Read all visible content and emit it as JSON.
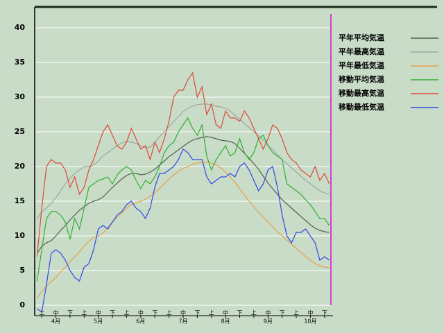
{
  "chart_data": {
    "type": "line",
    "categories": [
      null,
      "上",
      null,
      null,
      "中",
      null,
      null,
      "下",
      null,
      null,
      "上",
      null,
      null,
      "中",
      null,
      null,
      "下",
      null,
      null,
      "上",
      null,
      null,
      "中",
      null,
      null,
      "下",
      null,
      null,
      "上",
      null,
      null,
      "中",
      null,
      null,
      "下",
      null,
      null,
      "上",
      null,
      null,
      "中",
      null,
      null,
      "下",
      null,
      null,
      "上",
      null,
      null,
      "中",
      null,
      null,
      "下",
      null,
      null,
      "上",
      null,
      null,
      "中",
      null,
      null,
      "下",
      null
    ],
    "months": [
      "4月",
      "5月",
      "6月",
      "7月",
      "8月",
      "9月",
      "10月"
    ],
    "ylim": [
      -1.5,
      43
    ],
    "yticks": [
      0,
      5,
      10,
      15,
      20,
      25,
      30,
      35,
      40
    ],
    "grid": true,
    "series": [
      {
        "name": "平年平均気温",
        "color": "#4f634f",
        "values": [
          7.5,
          8.5,
          9,
          9.3,
          10,
          10.8,
          11.5,
          12.3,
          13,
          13.7,
          14.2,
          14.7,
          15,
          15.2,
          15.6,
          16.3,
          17,
          17.6,
          18.2,
          18.7,
          19,
          19,
          18.8,
          18.9,
          19.2,
          19.6,
          20.2,
          20.8,
          21.4,
          21.9,
          22.4,
          22.9,
          23.4,
          23.8,
          24,
          24.2,
          24.3,
          24.2,
          24,
          23.8,
          23.7,
          23.6,
          23.3,
          22.6,
          21.9,
          21.2,
          20.4,
          19.6,
          18.6,
          17.6,
          16.8,
          16,
          15.2,
          14.6,
          14,
          13.4,
          12.8,
          12.2,
          11.6,
          11.1,
          10.8,
          10.6,
          10.5
        ]
      },
      {
        "name": "平年最高気温",
        "color": "#a0a8a0",
        "values": [
          12.5,
          13.5,
          14,
          14.7,
          15.5,
          16.5,
          17.5,
          18.3,
          19,
          19.5,
          20,
          20,
          20.2,
          20.8,
          21.5,
          22,
          22.5,
          23,
          23.4,
          23.6,
          23.5,
          23.3,
          23,
          22.7,
          22.8,
          23.5,
          24.3,
          25,
          25.7,
          26.5,
          27.2,
          27.9,
          28.4,
          28.7,
          28.9,
          29,
          29,
          28.9,
          28.7,
          28.6,
          28.4,
          28,
          27.4,
          26.8,
          26.2,
          25.6,
          25,
          24.4,
          23.8,
          23.1,
          22.4,
          21.7,
          21,
          20.4,
          19.8,
          19.2,
          18.6,
          18,
          17.5,
          17,
          16.5,
          16.2,
          16
        ]
      },
      {
        "name": "平年最低気温",
        "color": "#e8a048",
        "values": [
          1,
          2,
          2.8,
          3.4,
          4,
          4.8,
          5.5,
          6.3,
          7,
          7.7,
          8.5,
          9.2,
          9.8,
          10,
          10.4,
          11.2,
          12,
          12.7,
          13.3,
          14,
          14.5,
          14.8,
          15,
          15.3,
          15.7,
          16.2,
          16.8,
          17.5,
          18.2,
          18.8,
          19.3,
          19.7,
          20,
          20.3,
          20.5,
          20.6,
          20.6,
          20.5,
          20.2,
          19.8,
          19.2,
          18.5,
          17.7,
          16.8,
          15.9,
          15,
          14.2,
          13.4,
          12.7,
          12,
          11.3,
          10.6,
          10,
          9.4,
          8.8,
          8.2,
          7.6,
          7,
          6.5,
          6,
          5.7,
          5.5,
          5.4
        ]
      },
      {
        "name": "移動平均気温",
        "color": "#30b030",
        "values": [
          3.5,
          8,
          12.5,
          13.5,
          13.5,
          13,
          12,
          9.5,
          12.5,
          11,
          14,
          17,
          17.5,
          18,
          18.2,
          18.5,
          17.5,
          18.8,
          19.5,
          20,
          19.5,
          18,
          16.8,
          18,
          17.5,
          18.5,
          20,
          22,
          23,
          23.5,
          25,
          26,
          27,
          25.5,
          24.5,
          26,
          21.5,
          19.5,
          21,
          22,
          23,
          21.5,
          22,
          24,
          22,
          21,
          22,
          24,
          24.5,
          23,
          22,
          21.5,
          21,
          17.5,
          17,
          16.5,
          16,
          15.2,
          14.5,
          13.5,
          12.5,
          12.5,
          11.5
        ]
      },
      {
        "name": "移動最高気温",
        "color": "#e04838",
        "values": [
          7,
          14,
          20,
          21,
          20.5,
          20.5,
          19.5,
          17,
          18.5,
          16,
          17,
          19.5,
          21,
          23,
          25,
          26,
          24.5,
          23,
          22.5,
          23.5,
          25.5,
          24,
          22.5,
          23,
          21,
          23.5,
          22,
          24,
          26.5,
          30,
          31,
          31,
          32.5,
          33.5,
          30,
          31.5,
          27.5,
          29,
          26,
          25.5,
          28,
          27,
          27,
          26.5,
          28,
          27,
          25.5,
          24,
          22.5,
          24,
          26,
          25.5,
          24,
          22,
          21,
          20.5,
          19.5,
          19,
          18.5,
          20,
          18,
          19,
          17.5
        ]
      },
      {
        "name": "移動最低気温",
        "color": "#3048e8",
        "values": [
          -0.5,
          -1,
          3,
          7.5,
          8,
          7.5,
          6.5,
          5,
          4,
          3.5,
          5.5,
          6,
          8,
          11,
          11.5,
          11,
          12,
          13,
          13.5,
          14.5,
          15,
          14,
          13.5,
          12.5,
          14,
          17,
          19,
          19,
          19.5,
          20,
          21,
          22.5,
          22,
          21,
          21,
          21,
          18.5,
          17.5,
          18,
          18.5,
          18.5,
          19,
          18.5,
          20,
          20.5,
          19.5,
          18,
          16.5,
          17.5,
          19.5,
          20,
          17,
          13,
          10,
          9,
          10.5,
          10.5,
          11,
          10,
          9,
          6.5,
          7,
          6.5
        ]
      }
    ]
  }
}
